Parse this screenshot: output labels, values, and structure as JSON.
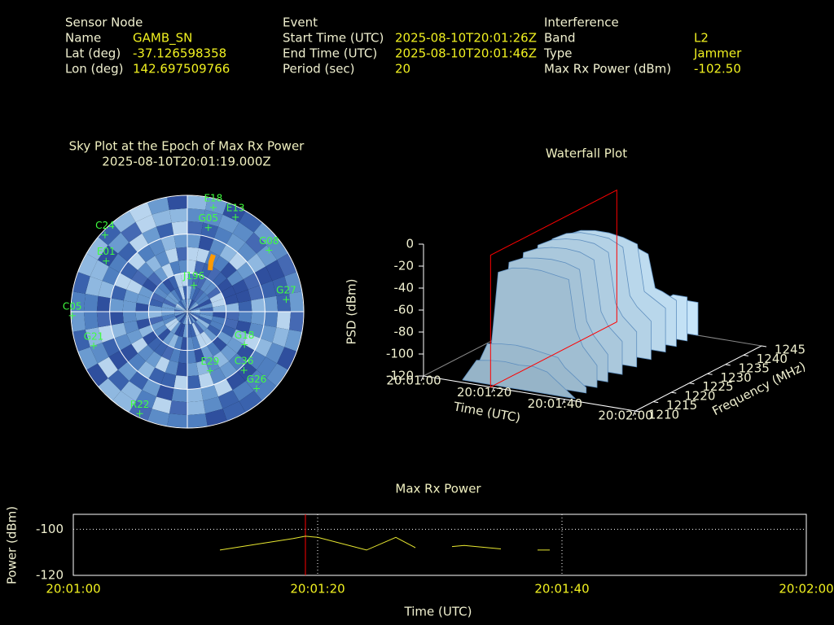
{
  "header": {
    "sections": [
      {
        "title": "Sensor Node",
        "rows": [
          {
            "label": "Name",
            "value": "GAMB_SN"
          },
          {
            "label": "Lat (deg)",
            "value": "-37.126598358"
          },
          {
            "label": "Lon (deg)",
            "value": "142.697509766"
          }
        ]
      },
      {
        "title": "Event",
        "rows": [
          {
            "label": "Start Time (UTC)",
            "value": "2025-08-10T20:01:26Z"
          },
          {
            "label": "End Time (UTC)",
            "value": "2025-08-10T20:01:46Z"
          },
          {
            "label": "Period (sec)",
            "value": "20"
          }
        ]
      },
      {
        "title": "Interference",
        "rows": [
          {
            "label": "Band",
            "value": "L2"
          },
          {
            "label": "Type",
            "value": "Jammer"
          },
          {
            "label": "Max Rx Power (dBm)",
            "value": "-102.50"
          }
        ]
      }
    ]
  },
  "chart_data": [
    {
      "type": "polar",
      "title": "Sky Plot at the Epoch of Max Rx Power",
      "subtitle": "2025-08-10T20:01:19.000Z",
      "ellim": [
        0,
        90
      ],
      "elticks": [
        0,
        30,
        60
      ],
      "color": "#40ff40",
      "satellites": {
        "names": [
          "E18",
          "E13",
          "C24",
          "G08",
          "G27",
          "C05",
          "G18",
          "C36",
          "G26",
          "R22",
          "E29",
          "G21",
          "G05",
          "E01",
          "J196"
        ],
        "azimuth": [
          14,
          27,
          313,
          53,
          83,
          268,
          120,
          136,
          138,
          205,
          159,
          250,
          14,
          302,
          14
        ],
        "elevation": [
          7,
          8,
          3,
          11,
          13,
          1,
          39,
          27,
          10,
          3,
          41,
          13,
          23,
          16,
          69
        ]
      }
    },
    {
      "type": "surface3d",
      "title": "Waterfall Plot",
      "xlabel": "Time (UTC)",
      "ylabel": "Frequency (MHz)",
      "zlabel": "PSD (dBm)",
      "x": [
        10,
        12,
        14,
        18,
        22,
        26,
        30,
        34,
        36,
        38,
        42
      ],
      "y": [
        1211,
        1214,
        1217,
        1220,
        1224,
        1228,
        1232,
        1236,
        1239,
        1242,
        1245
      ],
      "z": [
        [
          -120,
          -110,
          -100,
          -98,
          -97,
          -98,
          -97,
          -100,
          -105,
          -110,
          -120
        ],
        [
          -120,
          -105,
          -90,
          -88,
          -87,
          -88,
          -90,
          -92,
          -100,
          -105,
          -115
        ],
        [
          -120,
          -100,
          -30,
          -24,
          -22,
          -22,
          -24,
          -26,
          -70,
          -85,
          -100
        ],
        [
          -120,
          -100,
          -26,
          -20,
          -18,
          -17,
          -18,
          -22,
          -68,
          -80,
          -95
        ],
        [
          -120,
          -100,
          -24,
          -18,
          -15,
          -14,
          -15,
          -20,
          -66,
          -78,
          -90
        ],
        [
          -120,
          -100,
          -24,
          -17,
          -14,
          -13,
          -14,
          -20,
          -65,
          -76,
          -88
        ],
        [
          -120,
          -100,
          -25,
          -18,
          -15,
          -15,
          -16,
          -22,
          -65,
          -74,
          -85
        ],
        [
          -120,
          -100,
          -28,
          -22,
          -20,
          -20,
          -22,
          -26,
          -68,
          -72,
          -80
        ],
        [
          -120,
          -102,
          -40,
          -35,
          -33,
          -33,
          -35,
          -40,
          -70,
          -72,
          -78
        ],
        [
          -120,
          -105,
          -95,
          -95,
          -95,
          -95,
          -95,
          -95,
          -85,
          -80,
          -80
        ],
        [
          -120,
          -110,
          -100,
          -100,
          -100,
          -100,
          -100,
          -100,
          -95,
          -90,
          -90
        ]
      ],
      "xlim": [
        0,
        60
      ],
      "xticks": [
        {
          "value": 0,
          "label": "20:01:00"
        },
        {
          "value": 20,
          "label": "20:01:20"
        },
        {
          "value": 40,
          "label": "20:01:40"
        },
        {
          "value": 60,
          "label": "20:02:00"
        }
      ],
      "ylim": [
        1210,
        1245
      ],
      "yticks": [
        1210,
        1215,
        1220,
        1225,
        1230,
        1235,
        1240,
        1245
      ],
      "zlim": [
        -120,
        0
      ],
      "zticks": [
        0,
        -20,
        -40,
        -60,
        -80,
        -100,
        -120
      ],
      "marker_x": 19,
      "marker_color": "#ff0000"
    },
    {
      "type": "line",
      "title": "Max Rx Power",
      "xlabel": "Time (UTC)",
      "ylabel": "Power (dBm)",
      "x": [
        12,
        15,
        18,
        19,
        20,
        24,
        26.4,
        28,
        29,
        31,
        32,
        35,
        36,
        38,
        39
      ],
      "series": [
        {
          "color": "#e8e830",
          "values": [
            -109,
            -106.5,
            -104,
            -103,
            -103.5,
            -109,
            -103.5,
            -108,
            null,
            -107.5,
            -107,
            -108.5,
            null,
            -109,
            -109
          ]
        }
      ],
      "xlim": [
        0,
        60
      ],
      "xticks": [
        {
          "value": 0,
          "label": "20:01:00"
        },
        {
          "value": 20,
          "label": "20:01:20"
        },
        {
          "value": 40,
          "label": "20:01:40"
        },
        {
          "value": 60,
          "label": "20:02:00"
        }
      ],
      "ylim": [
        -120,
        -93.5
      ],
      "yticks": [
        -100,
        -120
      ],
      "grid": true,
      "marker_x": 19,
      "marker_color": "#ff0000"
    }
  ]
}
